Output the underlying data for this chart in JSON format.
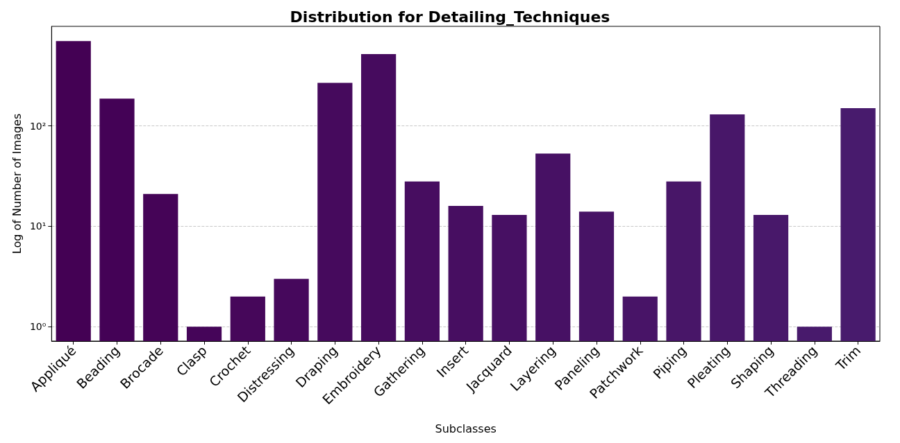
{
  "chart_data": {
    "type": "bar",
    "title": "Distribution for Detailing_Techniques",
    "xlabel": "Subclasses",
    "ylabel": "Log of Number of Images",
    "categories": [
      "Appliqué",
      "Beading",
      "Brocade",
      "Clasp",
      "Crochet",
      "Distressing",
      "Draping",
      "Embroidery",
      "Gathering",
      "Insert",
      "Jacquard",
      "Layering",
      "Paneling",
      "Patchwork",
      "Piping",
      "Pleating",
      "Shaping",
      "Threading",
      "Trim"
    ],
    "values": [
      700,
      187,
      21,
      1,
      2,
      3,
      268,
      518,
      28,
      16,
      13,
      53,
      14,
      2,
      28,
      130,
      13,
      1,
      150
    ],
    "colors": [
      "#440154",
      "#440256",
      "#450457",
      "#450559",
      "#46075a",
      "#46085c",
      "#460a5d",
      "#460b5e",
      "#470d60",
      "#470e61",
      "#471063",
      "#471164",
      "#471365",
      "#481467",
      "#481668",
      "#481769",
      "#48186a",
      "#481a6c",
      "#481b6d"
    ],
    "log": "y",
    "ylim": [
      0.72,
      980
    ],
    "yticks": [
      {
        "value": 1,
        "label": "10⁰"
      },
      {
        "value": 10,
        "label": "10¹"
      },
      {
        "value": 100,
        "label": "10²"
      }
    ],
    "grid": "y"
  }
}
